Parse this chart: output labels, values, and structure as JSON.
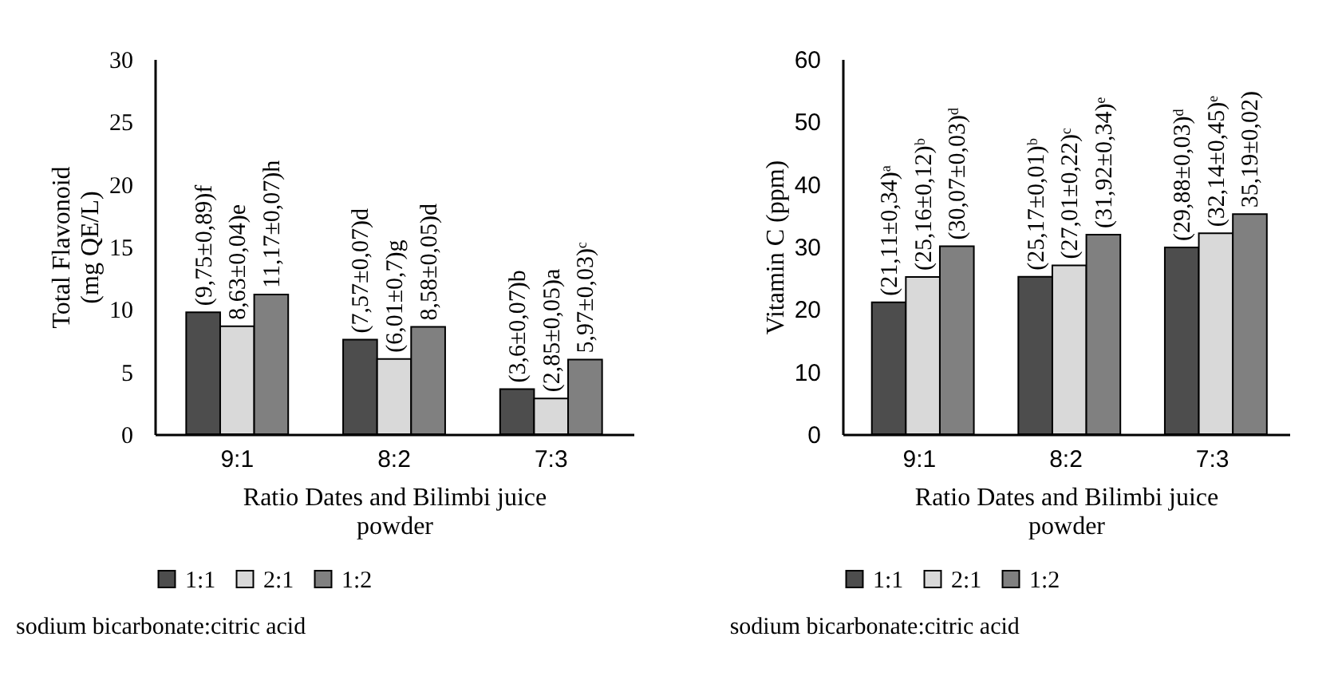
{
  "chart_data": [
    {
      "type": "bar",
      "ylabel": "Total Flavonoid (mg QE/L)",
      "xlabel": "Ratio Dates and Bilimbi juice powder",
      "categories": [
        "9:1",
        "8:2",
        "7:3"
      ],
      "ylim": [
        0,
        30
      ],
      "yticks": [
        0,
        5,
        10,
        15,
        20,
        25,
        30
      ],
      "legend": "bottom",
      "annotations": [
        "sodium bicarbonate:citric acid"
      ],
      "series": [
        {
          "name": "1:1",
          "color": "#4d4d4d",
          "values": [
            9.75,
            7.57,
            3.6
          ],
          "value_labels": [
            "(9,75±0,89)f",
            "(7,57±0,07)d",
            "(3,6±0,07)b"
          ]
        },
        {
          "name": "2:1",
          "color": "#d9d9d9",
          "values": [
            8.63,
            6.01,
            2.85
          ],
          "value_labels": [
            "8,63±0,04)e",
            "(6,01±0,7)g",
            "(2,85±0,05)a"
          ]
        },
        {
          "name": "1:2",
          "color": "#808080",
          "values": [
            11.17,
            8.58,
            5.97
          ],
          "value_labels": [
            "11,17±0,07)h",
            "8,58±0,05)d",
            "5,97±0,03)ᶜ"
          ]
        }
      ]
    },
    {
      "type": "bar",
      "ylabel": "Vitamin C (ppm)",
      "xlabel": "Ratio Dates and Bilimbi juice powder",
      "categories": [
        "9:1",
        "8:2",
        "7:3"
      ],
      "ylim": [
        0,
        60
      ],
      "yticks": [
        0,
        10,
        20,
        30,
        40,
        50,
        60
      ],
      "legend": "bottom",
      "annotations": [
        "sodium bicarbonate:citric acid"
      ],
      "series": [
        {
          "name": "1:1",
          "color": "#4d4d4d",
          "values": [
            21.11,
            25.17,
            29.88
          ],
          "value_labels": [
            "(21,11±0,34)ᵃ",
            "(25,17±0,01)ᵇ",
            "(29,88±0,03)ᵈ"
          ]
        },
        {
          "name": "2:1",
          "color": "#d9d9d9",
          "values": [
            25.16,
            27.01,
            32.14
          ],
          "value_labels": [
            "(25,16±0,12)ᵇ",
            "(27,01±0,22)ᶜ",
            "(32,14±0,45)ᵉ"
          ]
        },
        {
          "name": "1:2",
          "color": "#808080",
          "values": [
            30.07,
            31.92,
            35.19
          ],
          "value_labels": [
            "(30,07±0,03)ᵈ",
            "(31,92±0,34)ᵉ",
            "35,19±0,02)"
          ]
        }
      ]
    }
  ]
}
